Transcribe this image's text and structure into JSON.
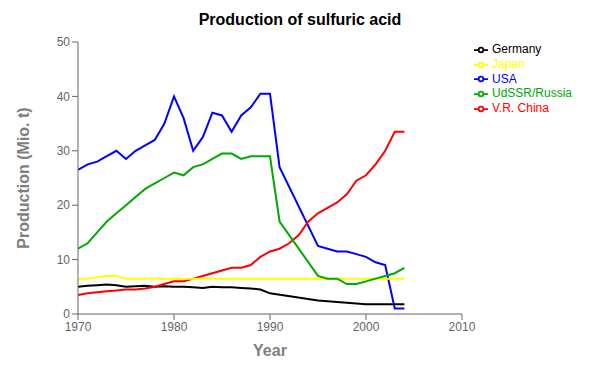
{
  "chart_data": {
    "type": "line",
    "title": "Production of sulfuric acid",
    "xlabel": "Year",
    "ylabel": "Production (Mio. t)",
    "xlim": [
      1970,
      2010
    ],
    "ylim": [
      0,
      50
    ],
    "xticks": [
      1970,
      1980,
      1990,
      2000,
      2010
    ],
    "yticks": [
      0,
      10,
      20,
      30,
      40,
      50
    ],
    "grid": false,
    "legend": "right",
    "series": [
      {
        "name": "Germany",
        "color": "#000000",
        "x": [
          1970,
          1971,
          1972,
          1973,
          1974,
          1975,
          1976,
          1977,
          1978,
          1979,
          1980,
          1981,
          1982,
          1983,
          1984,
          1985,
          1986,
          1987,
          1988,
          1989,
          1990,
          1995,
          2000,
          2001,
          2002,
          2003,
          2004
        ],
        "values": [
          5.0,
          5.2,
          5.3,
          5.4,
          5.3,
          5.0,
          5.1,
          5.2,
          5.0,
          5.1,
          5.0,
          5.0,
          4.9,
          4.8,
          5.0,
          4.9,
          4.9,
          4.8,
          4.7,
          4.5,
          3.8,
          2.5,
          1.8,
          1.8,
          1.8,
          1.8,
          1.8
        ]
      },
      {
        "name": "USA",
        "color": "#0000ff",
        "x": [
          1970,
          1971,
          1972,
          1973,
          1974,
          1975,
          1976,
          1977,
          1978,
          1979,
          1980,
          1981,
          1982,
          1983,
          1984,
          1985,
          1986,
          1987,
          1988,
          1989,
          1990,
          1991,
          1995,
          1996,
          1997,
          1998,
          1999,
          2000,
          2001,
          2002,
          2003,
          2004
        ],
        "values": [
          26.5,
          27.5,
          28.0,
          29.0,
          30.0,
          28.5,
          30.0,
          31.0,
          32.0,
          35.0,
          40.0,
          36.0,
          30.0,
          32.5,
          37.0,
          36.5,
          33.5,
          36.5,
          38.0,
          40.5,
          40.5,
          27.0,
          12.5,
          12.0,
          11.5,
          11.5,
          11.0,
          10.5,
          9.5,
          9.0,
          1.0,
          1.0
        ]
      },
      {
        "name": "V.R. China",
        "color": "#ff0000",
        "x": [
          1970,
          1971,
          1972,
          1973,
          1974,
          1975,
          1976,
          1977,
          1978,
          1979,
          1980,
          1981,
          1982,
          1983,
          1984,
          1985,
          1986,
          1987,
          1988,
          1989,
          1990,
          1991,
          1992,
          1993,
          1994,
          1995,
          1996,
          1997,
          1998,
          1999,
          2000,
          2001,
          2002,
          2003,
          2004
        ],
        "values": [
          3.5,
          3.8,
          4.0,
          4.2,
          4.3,
          4.5,
          4.5,
          4.7,
          5.0,
          5.5,
          6.0,
          6.0,
          6.5,
          7.0,
          7.5,
          8.0,
          8.5,
          8.5,
          9.0,
          10.5,
          11.5,
          12.0,
          13.0,
          14.5,
          17.0,
          18.5,
          19.5,
          20.5,
          22.0,
          24.5,
          25.5,
          27.5,
          30.0,
          33.5,
          33.5
        ]
      },
      {
        "name": "Japan",
        "color": "#ffff00",
        "x": [
          1970,
          1971,
          1972,
          1973,
          1974,
          1975,
          1976,
          1977,
          1978,
          1979,
          1980,
          1981,
          1982,
          1983,
          1984,
          1985,
          1986,
          1987,
          1988,
          1989,
          1990,
          1991,
          1992,
          1993,
          1994,
          1995,
          1996,
          1997,
          1998,
          1999,
          2000,
          2001,
          2002,
          2003,
          2004
        ],
        "values": [
          6.5,
          6.5,
          6.8,
          7.0,
          7.0,
          6.5,
          6.5,
          6.5,
          6.5,
          6.5,
          6.5,
          6.5,
          6.5,
          6.5,
          6.5,
          6.5,
          6.5,
          6.5,
          6.5,
          6.5,
          6.5,
          6.5,
          6.5,
          6.5,
          6.5,
          6.5,
          6.5,
          6.5,
          6.5,
          6.5,
          6.5,
          6.5,
          6.5,
          6.5,
          6.5
        ]
      },
      {
        "name": "UdSSR/Russia",
        "color": "#00aa00",
        "x": [
          1970,
          1971,
          1972,
          1973,
          1974,
          1975,
          1976,
          1977,
          1978,
          1979,
          1980,
          1981,
          1982,
          1983,
          1984,
          1985,
          1986,
          1987,
          1988,
          1989,
          1990,
          1991,
          1995,
          1996,
          1997,
          1998,
          1999,
          2000,
          2001,
          2002,
          2003,
          2004
        ],
        "values": [
          12.0,
          13.0,
          15.0,
          17.0,
          18.5,
          20.0,
          21.5,
          23.0,
          24.0,
          25.0,
          26.0,
          25.5,
          27.0,
          27.5,
          28.5,
          29.5,
          29.5,
          28.5,
          29.0,
          29.0,
          29.0,
          17.0,
          7.0,
          6.5,
          6.5,
          5.5,
          5.5,
          6.0,
          6.5,
          7.0,
          7.5,
          8.5
        ]
      }
    ]
  }
}
